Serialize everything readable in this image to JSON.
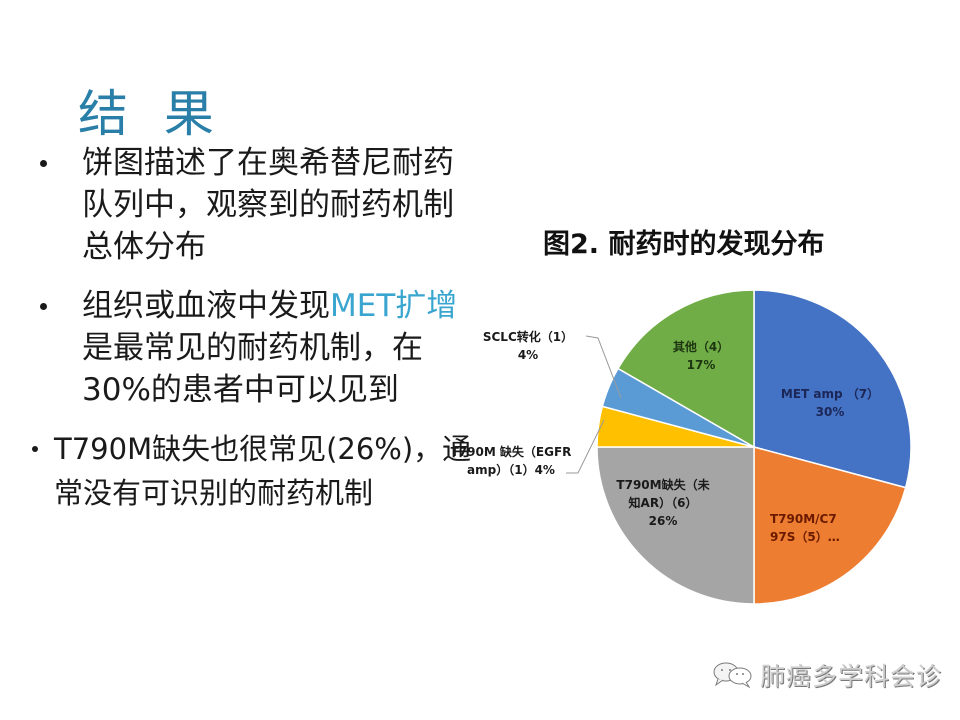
{
  "slide": {
    "title": "结 果",
    "bullets": [
      {
        "text": "饼图描述了在奥希替尼耐药队列中，观察到的耐药机制总体分布"
      },
      {
        "text_before": "组织或血液中发现",
        "highlight": "MET扩增",
        "text_after": "是最常见的耐药机制，在30%的患者中可以见到"
      },
      {
        "text": "T790M缺失也很常见(26%)，通常没有可识别的耐药机制"
      }
    ],
    "colors": {
      "title": "#2a7fa8",
      "highlight": "#3aa6d0"
    }
  },
  "watermark": {
    "icon": "chat-bubbles-icon",
    "text": "肺癌多学科会诊"
  },
  "chart_data": {
    "type": "pie",
    "title": "图2. 耐药时的发现分布",
    "start_angle": "12 o'clock, clockwise",
    "categories": [
      "MET amp",
      "T790M/C797S",
      "T790M缺失（未知AR）",
      "T790M 缺失（EGFR amp）",
      "SCLC转化",
      "其他"
    ],
    "counts": [
      7,
      5,
      6,
      1,
      1,
      4
    ],
    "values_percent": [
      30,
      21,
      26,
      4,
      4,
      17
    ],
    "colors": [
      "#4472c4",
      "#ed7d31",
      "#a5a5a5",
      "#ffc000",
      "#5b9bd5",
      "#70ad47"
    ],
    "labels": [
      {
        "line1": "MET amp （7）",
        "line2": "30%"
      },
      {
        "line1": "T790M/C7",
        "line2": "97S（5）…"
      },
      {
        "line1": "T790M缺失（未",
        "line2": "知AR）（6）",
        "line3": "26%"
      },
      {
        "line1": "T790M 缺失（EGFR",
        "line2": "amp）（1）4%"
      },
      {
        "line1": "SCLC转化（1）",
        "line2": "4%"
      },
      {
        "line1": "其他（4）",
        "line2": "17%"
      }
    ],
    "legend": "none (data labels on slices, leader lines for small slices)"
  }
}
